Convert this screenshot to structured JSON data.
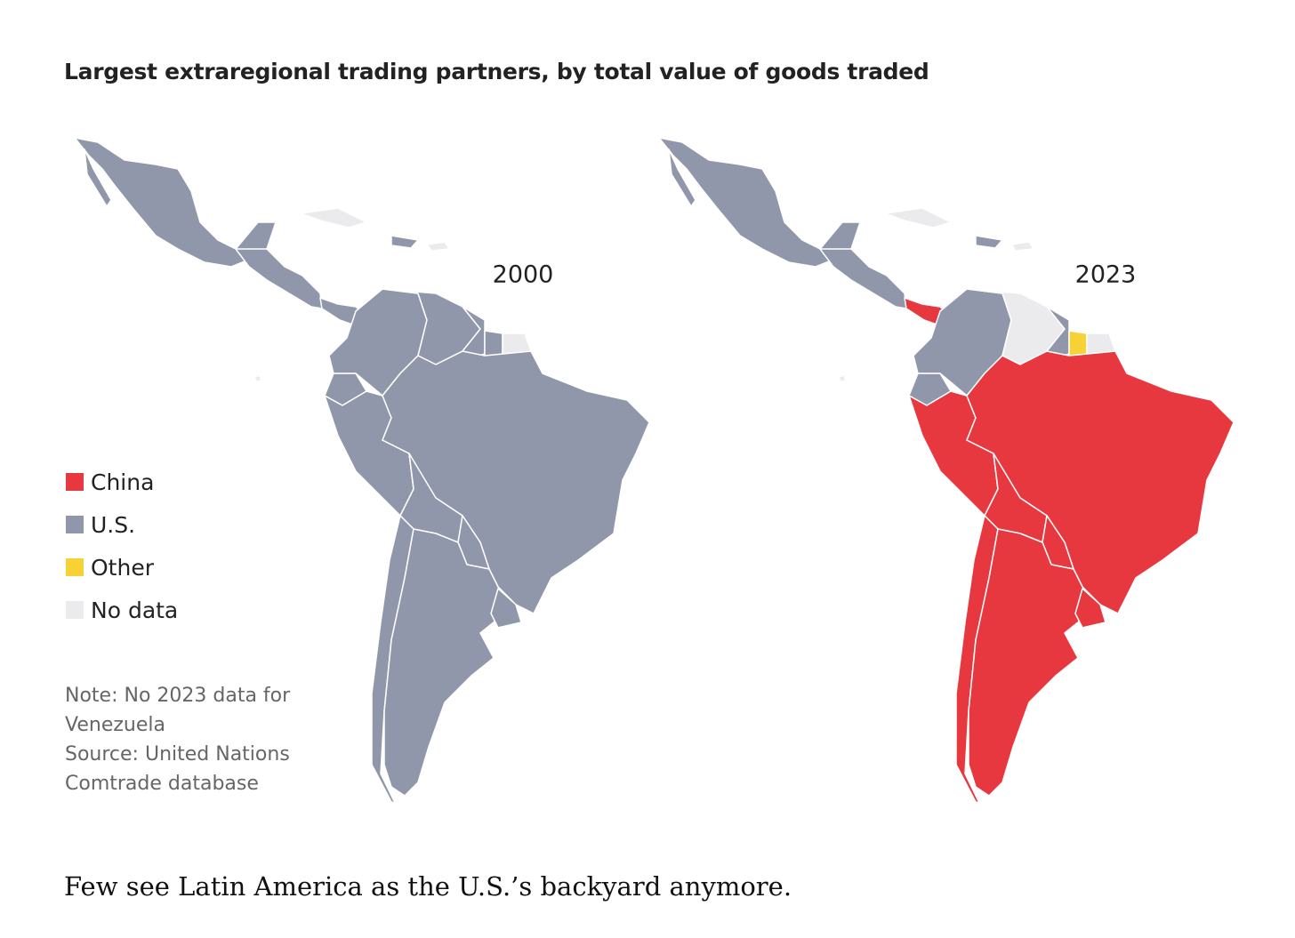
{
  "header": {
    "title": "Largest extraregional trading partners, by total value of goods traded"
  },
  "maps": [
    {
      "label": "2000"
    },
    {
      "label": "2023"
    }
  ],
  "legend": {
    "items": [
      {
        "label": "China",
        "color": "#e8383f"
      },
      {
        "label": "U.S.",
        "color": "#9197ab"
      },
      {
        "label": "Other",
        "color": "#f7d235"
      },
      {
        "label": "No data",
        "color": "#ebebed"
      }
    ]
  },
  "note": "Note: No 2023 data for Venezuela",
  "source": "Source: United Nations Comtrade database",
  "caption": "Few see Latin America as the U.S.’s backyard anymore."
}
